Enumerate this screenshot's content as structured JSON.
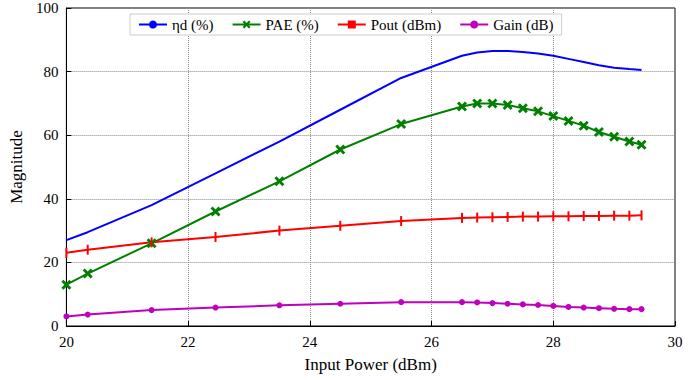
{
  "chart_data": {
    "type": "line",
    "x_label": "Input Power (dBm)",
    "y_label": "Magnitude",
    "x": [
      20,
      20.35,
      21.4,
      22.45,
      23.5,
      24.5,
      25.5,
      26.5,
      26.75,
      27,
      27.25,
      27.5,
      27.75,
      28,
      28.25,
      28.5,
      28.75,
      29,
      29.25,
      29.45
    ],
    "series": [
      {
        "name": "ηd (%)",
        "color": "#0000ff",
        "marker": "none",
        "values": [
          27,
          29.5,
          38,
          48,
          58,
          68,
          78,
          85,
          86,
          86.5,
          86.5,
          86.2,
          85.7,
          85,
          84,
          83,
          82,
          81.2,
          80.8,
          80.5
        ]
      },
      {
        "name": "PAE (%)",
        "color": "#008000",
        "marker": "cross",
        "values": [
          13,
          16.5,
          26,
          36,
          45.5,
          55.5,
          63.5,
          69,
          70,
          70,
          69.5,
          68.5,
          67.5,
          66,
          64.5,
          63,
          61,
          59.5,
          58,
          57
        ]
      },
      {
        "name": "Pout (dBm)",
        "color": "#ff0000",
        "marker": "vline",
        "values": [
          23,
          24,
          26.3,
          28,
          30,
          31.5,
          33,
          34,
          34.1,
          34.2,
          34.3,
          34.4,
          34.4,
          34.5,
          34.5,
          34.6,
          34.6,
          34.7,
          34.7,
          34.8
        ]
      },
      {
        "name": "Gain (dB)",
        "color": "#bf00bf",
        "marker": "circle",
        "values": [
          3,
          3.6,
          5,
          5.8,
          6.5,
          7,
          7.5,
          7.5,
          7.4,
          7.2,
          7,
          6.8,
          6.6,
          6.3,
          6,
          5.8,
          5.6,
          5.4,
          5.3,
          5.3
        ]
      }
    ],
    "xlim": [
      20,
      30
    ],
    "xticks": [
      20,
      22,
      24,
      26,
      28,
      30
    ],
    "ylim": [
      0,
      100
    ],
    "yticks": [
      0,
      20,
      40,
      60,
      80,
      100
    ],
    "grid": true,
    "legend": "top"
  }
}
